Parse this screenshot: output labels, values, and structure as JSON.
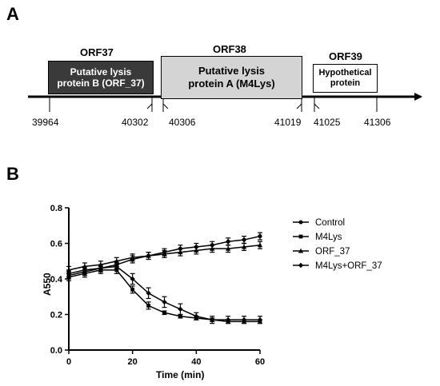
{
  "panel_a": {
    "letter": "A",
    "orfs": [
      {
        "name": "ORF37",
        "box_lines": [
          "Putative lysis",
          "protein B (ORF_37)"
        ],
        "fill": "#3a3a3a",
        "text_color": "#ffffff"
      },
      {
        "name": "ORF38",
        "box_lines": [
          "Putative lysis",
          "protein A (M4Lys)"
        ],
        "fill": "#d4d4d4",
        "text_color": "#000000"
      },
      {
        "name": "ORF39",
        "box_lines": [
          "Hypothetical",
          "protein"
        ],
        "fill": "#ffffff",
        "text_color": "#000000"
      }
    ],
    "coordinates": [
      "39964",
      "40302",
      "40306",
      "41019",
      "41025",
      "41306"
    ]
  },
  "panel_b": {
    "letter": "B",
    "chart_data": {
      "type": "line",
      "xlabel": "Time (min)",
      "ylabel": "A550",
      "xlim": [
        0,
        60
      ],
      "ylim": [
        0.0,
        0.8
      ],
      "xticks": [
        0,
        20,
        40,
        60
      ],
      "yticks": [
        0.0,
        0.2,
        0.4,
        0.6,
        0.8
      ],
      "ytick_labels": [
        "0.0",
        "0.2",
        "0.4",
        "0.6",
        "0.8"
      ],
      "grid": false,
      "legend_position": "top-right",
      "x": [
        0,
        5,
        10,
        15,
        20,
        25,
        30,
        35,
        40,
        45,
        50,
        55,
        60
      ],
      "series": [
        {
          "name": "Control",
          "marker": "circle",
          "values": [
            0.42,
            0.44,
            0.46,
            0.48,
            0.51,
            0.53,
            0.55,
            0.57,
            0.58,
            0.59,
            0.61,
            0.62,
            0.64
          ],
          "errors": [
            0.02,
            0.02,
            0.02,
            0.02,
            0.02,
            0.02,
            0.02,
            0.02,
            0.02,
            0.02,
            0.02,
            0.02,
            0.02
          ]
        },
        {
          "name": "M4Lys",
          "marker": "square",
          "values": [
            0.41,
            0.43,
            0.45,
            0.45,
            0.34,
            0.25,
            0.21,
            0.19,
            0.18,
            0.17,
            0.16,
            0.16,
            0.16
          ],
          "errors": [
            0.02,
            0.02,
            0.02,
            0.02,
            0.02,
            0.02,
            0.01,
            0.01,
            0.01,
            0.01,
            0.01,
            0.01,
            0.01
          ]
        },
        {
          "name": "ORF_37",
          "marker": "triangle",
          "values": [
            0.45,
            0.47,
            0.48,
            0.5,
            0.52,
            0.53,
            0.54,
            0.55,
            0.56,
            0.57,
            0.57,
            0.58,
            0.59
          ],
          "errors": [
            0.02,
            0.02,
            0.02,
            0.02,
            0.02,
            0.02,
            0.02,
            0.02,
            0.02,
            0.02,
            0.02,
            0.02,
            0.02
          ]
        },
        {
          "name": "M4Lys+ORF_37",
          "marker": "diamond",
          "values": [
            0.43,
            0.45,
            0.46,
            0.47,
            0.4,
            0.32,
            0.27,
            0.23,
            0.19,
            0.17,
            0.17,
            0.17,
            0.17
          ],
          "errors": [
            0.02,
            0.02,
            0.02,
            0.02,
            0.03,
            0.03,
            0.03,
            0.03,
            0.02,
            0.02,
            0.02,
            0.02,
            0.02
          ]
        }
      ]
    }
  }
}
